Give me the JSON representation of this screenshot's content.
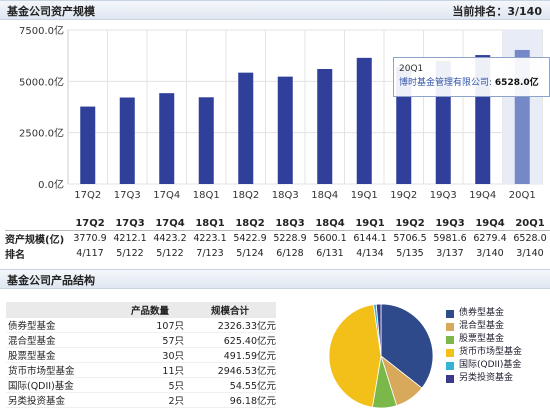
{
  "header1": {
    "title": "基金公司资产规模",
    "rank_label": "当前排名：3/140"
  },
  "header2": {
    "title": "基金公司产品结构"
  },
  "tooltip": {
    "period": "20Q1",
    "company": "博时基金管理有限公司:",
    "value": "6528.0亿"
  },
  "colors": {
    "bar": "#2f3f9a",
    "bar_highlight": "#7588c8"
  },
  "chart_data": [
    {
      "type": "bar",
      "categories": [
        "17Q2",
        "17Q3",
        "17Q4",
        "18Q1",
        "18Q2",
        "18Q3",
        "18Q4",
        "19Q1",
        "19Q2",
        "19Q3",
        "19Q4",
        "20Q1"
      ],
      "values": [
        3770.9,
        4212.1,
        4423.2,
        4223.1,
        5422.9,
        5228.9,
        5600.1,
        6144.1,
        5706.5,
        5981.6,
        6279.4,
        6528.0
      ],
      "yticks": [
        "0.0亿",
        "2500.0亿",
        "5000.0亿",
        "7500.0亿"
      ],
      "ylim": [
        0,
        7500
      ],
      "highlight_index": 11,
      "grid": true
    },
    {
      "type": "pie",
      "categories": [
        "债券型基金",
        "混合型基金",
        "股票型基金",
        "货币市场型基金",
        "国际(QDII)基金",
        "另类投资基金"
      ],
      "values": [
        2326.33,
        625.4,
        491.59,
        2946.53,
        54.55,
        96.18
      ],
      "colors": [
        "#2e4a8a",
        "#d8a95b",
        "#7ab84a",
        "#f3c01a",
        "#35b3d3",
        "#3a3a8a"
      ],
      "legend": "right"
    }
  ],
  "data_table": {
    "row_labels": [
      "资产规模(亿)",
      "排名"
    ],
    "sizes": [
      "3770.9",
      "4212.1",
      "4423.2",
      "4223.1",
      "5422.9",
      "5228.9",
      "5600.1",
      "6144.1",
      "5706.5",
      "5981.6",
      "6279.4",
      "6528.0"
    ],
    "ranks": [
      "4/117",
      "5/122",
      "5/122",
      "7/123",
      "5/124",
      "6/128",
      "6/131",
      "4/134",
      "5/135",
      "3/137",
      "3/140",
      "3/140"
    ]
  },
  "product_table": {
    "headers": [
      "",
      "产品数量",
      "规模合计"
    ],
    "rows": [
      {
        "name": "债券型基金",
        "count": "107只",
        "total": "2326.33亿元"
      },
      {
        "name": "混合型基金",
        "count": "57只",
        "total": "625.40亿元"
      },
      {
        "name": "股票型基金",
        "count": "30只",
        "total": "491.59亿元"
      },
      {
        "name": "货币市场型基金",
        "count": "11只",
        "total": "2946.53亿元"
      },
      {
        "name": "国际(QDII)基金",
        "count": "5只",
        "total": "54.55亿元"
      },
      {
        "name": "另类投资基金",
        "count": "2只",
        "total": "96.18亿元"
      }
    ]
  }
}
